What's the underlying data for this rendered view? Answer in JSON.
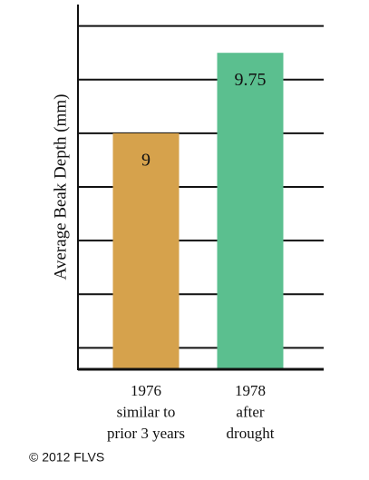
{
  "chart_data": {
    "type": "bar",
    "y_label": "Average Beak Depth (mm)",
    "categories": [
      [
        "1976",
        "similar to",
        "prior 3 years"
      ],
      [
        "1978",
        "after",
        "drought"
      ]
    ],
    "values": [
      9,
      9.75
    ],
    "colors": [
      "#d6a24c",
      "#5bbf8f"
    ],
    "ylim": [
      6.8,
      10.2
    ],
    "yticks": [
      7,
      7.5,
      8,
      8.5,
      9,
      9.5,
      10
    ],
    "grid": true
  },
  "copyright": "© 2012 FLVS"
}
